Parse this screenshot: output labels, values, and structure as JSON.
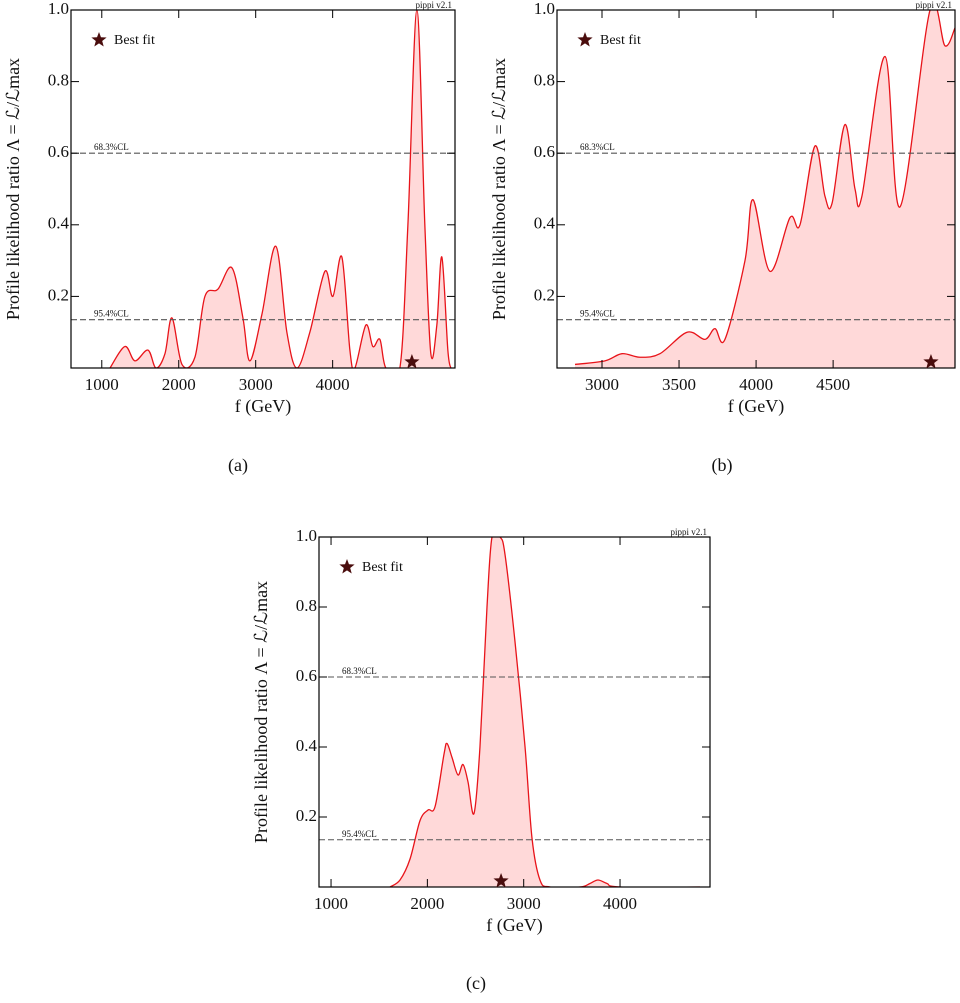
{
  "chart_data": [
    {
      "type": "area",
      "caption": "(a)",
      "watermark": "pippi v2.1",
      "x_label": "f (GeV)",
      "y_label": "Profile likelihood ratio Λ = ℒ/ℒmax",
      "xlim": [
        600,
        5590
      ],
      "xticks": [
        1000,
        2000,
        3000,
        4000
      ],
      "ylim": [
        0,
        1
      ],
      "yticks": [
        0.2,
        0.4,
        0.6,
        0.8,
        {
          "value": 1,
          "label": "1.0"
        }
      ],
      "fill": "#ffd9d9",
      "series": [
        {
          "color": "#e8141a",
          "x": [
            1107,
            1301,
            1431,
            1600,
            1704,
            1821,
            1912,
            2042,
            2210,
            2340,
            2509,
            2691,
            2834,
            2925,
            3081,
            3262,
            3405,
            3536,
            3704,
            3899,
            4003,
            4120,
            4224,
            4289,
            4432,
            4523,
            4614,
            4692,
            4874,
            4978,
            5095,
            5198,
            5276,
            5354,
            5419,
            5497,
            5536
          ],
          "values": [
            0,
            0.06,
            0.02,
            0.05,
            0,
            0.04,
            0.14,
            0.01,
            0.03,
            0.2,
            0.22,
            0.28,
            0.14,
            0.02,
            0.15,
            0.34,
            0.1,
            0,
            0.1,
            0.27,
            0.2,
            0.31,
            0.05,
            0,
            0.12,
            0.06,
            0.08,
            0,
            0,
            0.4,
            1,
            0.4,
            0.04,
            0.12,
            0.31,
            0.05,
            0
          ]
        }
      ],
      "reference_lines": [
        {
          "value": 0.6,
          "label": "68.3%CL"
        },
        {
          "value": 0.135,
          "label": "95.4%CL"
        }
      ],
      "best_fit": {
        "name": "Best fit",
        "x": 5030,
        "y": 0
      }
    },
    {
      "type": "area",
      "caption": "(b)",
      "watermark": "pippi v2.1",
      "x_label": "f (GeV)",
      "y_label": "Profile likelihood ratio Λ = ℒ/ℒmax",
      "xlim": [
        2708,
        5291
      ],
      "xticks": [
        3000,
        3500,
        4000,
        4500
      ],
      "ylim": [
        0,
        1
      ],
      "yticks": [
        0.2,
        0.4,
        0.6,
        0.8,
        {
          "value": 1,
          "label": "1.0"
        }
      ],
      "fill": "#ffd9d9",
      "series": [
        {
          "color": "#e8141a",
          "x": [
            2825,
            3019,
            3130,
            3247,
            3376,
            3552,
            3668,
            3733,
            3798,
            3928,
            3980,
            4090,
            4220,
            4285,
            4382,
            4447,
            4493,
            4577,
            4642,
            4687,
            4837,
            4934,
            5129,
            5226,
            5291
          ],
          "values": [
            0.01,
            0.02,
            0.04,
            0.03,
            0.04,
            0.1,
            0.08,
            0.11,
            0.08,
            0.3,
            0.47,
            0.27,
            0.42,
            0.4,
            0.62,
            0.48,
            0.46,
            0.68,
            0.5,
            0.48,
            0.87,
            0.45,
            1,
            0.9,
            0.95
          ]
        }
      ],
      "reference_lines": [
        {
          "value": 0.6,
          "label": "68.3%CL"
        },
        {
          "value": 0.135,
          "label": "95.4%CL"
        }
      ],
      "best_fit": {
        "name": "Best fit",
        "x": 5135,
        "y": 0
      }
    },
    {
      "type": "area",
      "caption": "(c)",
      "watermark": "pippi v2.1",
      "x_label": "f (GeV)",
      "y_label": "Profile likelihood ratio Λ = ℒ/ℒmax",
      "xlim": [
        875,
        4934
      ],
      "xticks": [
        1000,
        2000,
        3000,
        4000
      ],
      "ylim": [
        0,
        1
      ],
      "yticks": [
        0.2,
        0.4,
        0.6,
        0.8,
        {
          "value": 1,
          "label": "1.0"
        }
      ],
      "fill": "#ffd9d9",
      "series": [
        {
          "color": "#e8141a",
          "x": [
            1612,
            1716,
            1820,
            1924,
            2007,
            2080,
            2173,
            2204,
            2256,
            2318,
            2370,
            2422,
            2484,
            2546,
            2619,
            2671,
            2754,
            2806,
            2910,
            3014,
            3086,
            3169,
            3273,
            3584,
            3688,
            3771,
            3865,
            4000,
            4830
          ],
          "values": [
            0,
            0.02,
            0.08,
            0.19,
            0.22,
            0.23,
            0.38,
            0.41,
            0.37,
            0.32,
            0.35,
            0.3,
            0.21,
            0.4,
            0.8,
            1,
            1,
            0.95,
            0.7,
            0.4,
            0.14,
            0.02,
            0,
            0,
            0.01,
            0.02,
            0.01,
            0,
            0
          ]
        }
      ],
      "reference_lines": [
        {
          "value": 0.6,
          "label": "68.3%CL"
        },
        {
          "value": 0.135,
          "label": "95.4%CL"
        }
      ],
      "best_fit": {
        "name": "Best fit",
        "x": 2765,
        "y": 0
      }
    }
  ]
}
